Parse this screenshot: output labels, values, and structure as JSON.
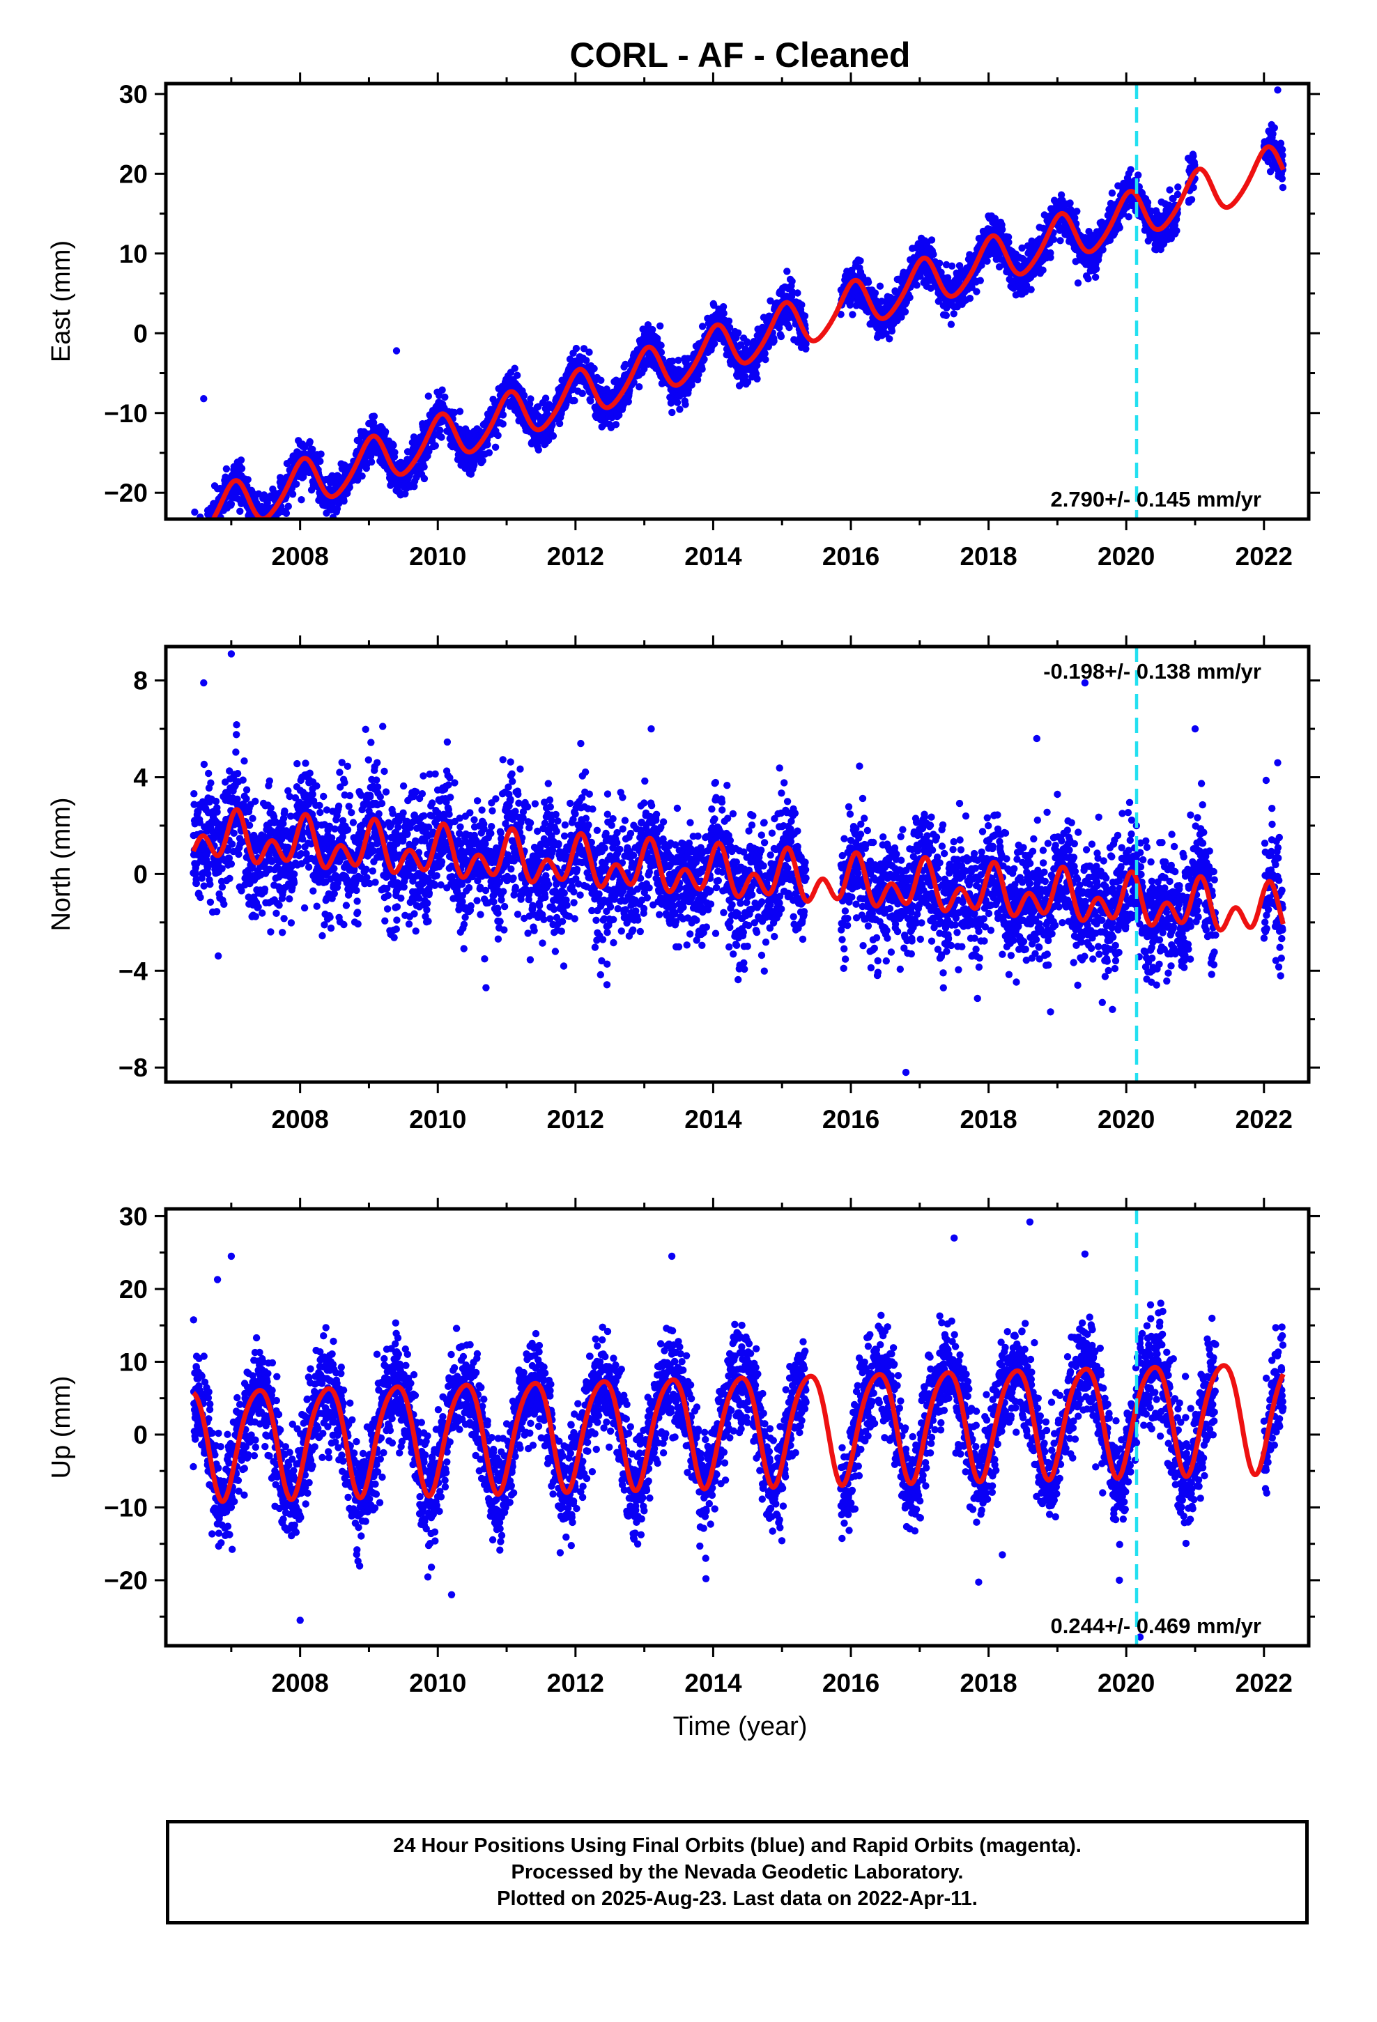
{
  "title": "CORL  - AF - Cleaned",
  "xlabel": "Time (year)",
  "footer": {
    "line1": "24 Hour Positions Using Final Orbits (blue) and Rapid Orbits (magenta).",
    "line2": "Processed by the Nevada Geodetic Laboratory.",
    "line3": "Plotted on 2025-Aug-23. Last data on 2022-Apr-11."
  },
  "colors": {
    "points": "#0a00f5",
    "model": "#ee1111",
    "event_line": "#22e0f0"
  },
  "chart_data": [
    {
      "type": "scatter",
      "ylabel": "East (mm)",
      "xlim": [
        2006.05,
        2022.65
      ],
      "ylim": [
        -23.3,
        31.3
      ],
      "xticks": [
        2008,
        2010,
        2012,
        2014,
        2016,
        2018,
        2020,
        2022
      ],
      "yticks": [
        -20,
        -10,
        0,
        10,
        20,
        30
      ],
      "rate_label": "2.790+/- 0.145 mm/yr",
      "rate_position": "bottom-right",
      "event_year": 2020.15,
      "data_span": [
        2006.45,
        2022.28
      ],
      "gaps": [
        [
          2015.35,
          2015.85
        ],
        [
          2020.75,
          2020.9
        ],
        [
          2021.0,
          2022.0
        ]
      ],
      "model": {
        "offset": -2.3,
        "rate": 2.79,
        "ref_year": 2014.0,
        "annual_amp": 2.9,
        "annual_phase": 1.4,
        "semi_amp": 0.4,
        "semi_phase": 0.3
      },
      "scatter_sigma": 1.3,
      "outliers": [
        {
          "x": 2019.3,
          "y": 6.3
        },
        {
          "x": 2018.9,
          "y": 9.5
        },
        {
          "x": 2006.6,
          "y": -8.2
        },
        {
          "x": 2009.4,
          "y": -2.2
        },
        {
          "x": 2022.2,
          "y": 30.5
        }
      ]
    },
    {
      "type": "scatter",
      "ylabel": "North (mm)",
      "xlim": [
        2006.05,
        2022.65
      ],
      "ylim": [
        -8.6,
        9.4
      ],
      "xticks": [
        2008,
        2010,
        2012,
        2014,
        2016,
        2018,
        2020,
        2022
      ],
      "yticks": [
        -8,
        -4,
        0,
        4,
        8
      ],
      "rate_label": "-0.198+/- 0.138 mm/yr",
      "rate_position": "top-right",
      "event_year": 2020.15,
      "data_span": [
        2006.45,
        2022.28
      ],
      "gaps": [
        [
          2015.35,
          2015.85
        ],
        [
          2021.3,
          2022.0
        ]
      ],
      "model": {
        "offset": 0.0,
        "rate": -0.198,
        "ref_year": 2014.0,
        "annual_amp": 0.6,
        "annual_phase": 1.2,
        "semi_amp": 0.7,
        "semi_phase": 0.5
      },
      "scatter_sigma": 1.25,
      "outliers": [
        {
          "x": 2006.6,
          "y": 7.9
        },
        {
          "x": 2007.0,
          "y": 9.1
        },
        {
          "x": 2009.2,
          "y": 6.1
        },
        {
          "x": 2013.1,
          "y": 6.0
        },
        {
          "x": 2016.8,
          "y": -8.2
        },
        {
          "x": 2019.4,
          "y": 7.9
        },
        {
          "x": 2021.0,
          "y": 6.0
        },
        {
          "x": 2018.7,
          "y": 5.6
        },
        {
          "x": 2019.8,
          "y": -5.6
        },
        {
          "x": 2018.9,
          "y": -5.7
        },
        {
          "x": 2022.2,
          "y": 4.6
        },
        {
          "x": 2010.7,
          "y": -4.7
        }
      ]
    },
    {
      "type": "scatter",
      "ylabel": "Up (mm)",
      "xlim": [
        2006.05,
        2022.65
      ],
      "ylim": [
        -29.0,
        31.0
      ],
      "xticks": [
        2008,
        2010,
        2012,
        2014,
        2016,
        2018,
        2020,
        2022
      ],
      "yticks": [
        -20,
        -10,
        0,
        10,
        20,
        30
      ],
      "rate_label": "0.244+/- 0.469 mm/yr",
      "rate_position": "bottom-right",
      "event_year": 2020.15,
      "data_span": [
        2006.45,
        2022.28
      ],
      "gaps": [
        [
          2015.35,
          2015.85
        ],
        [
          2021.3,
          2022.0
        ]
      ],
      "model": {
        "offset": 1.0,
        "rate": 0.244,
        "ref_year": 2014.0,
        "annual_amp": 7.5,
        "annual_phase": -0.85,
        "semi_amp": 1.0,
        "semi_phase": 0.3
      },
      "scatter_sigma": 3.6,
      "outliers": [
        {
          "x": 2007.0,
          "y": 24.5
        },
        {
          "x": 2013.4,
          "y": 24.5
        },
        {
          "x": 2017.5,
          "y": 27.0
        },
        {
          "x": 2018.6,
          "y": 29.2
        },
        {
          "x": 2019.4,
          "y": 24.8
        },
        {
          "x": 2008.0,
          "y": -25.5
        },
        {
          "x": 2019.9,
          "y": -20.0
        },
        {
          "x": 2020.2,
          "y": -27.8
        },
        {
          "x": 2010.2,
          "y": -22.0
        },
        {
          "x": 2018.2,
          "y": -16.5
        },
        {
          "x": 2006.8,
          "y": 21.3
        }
      ]
    }
  ]
}
